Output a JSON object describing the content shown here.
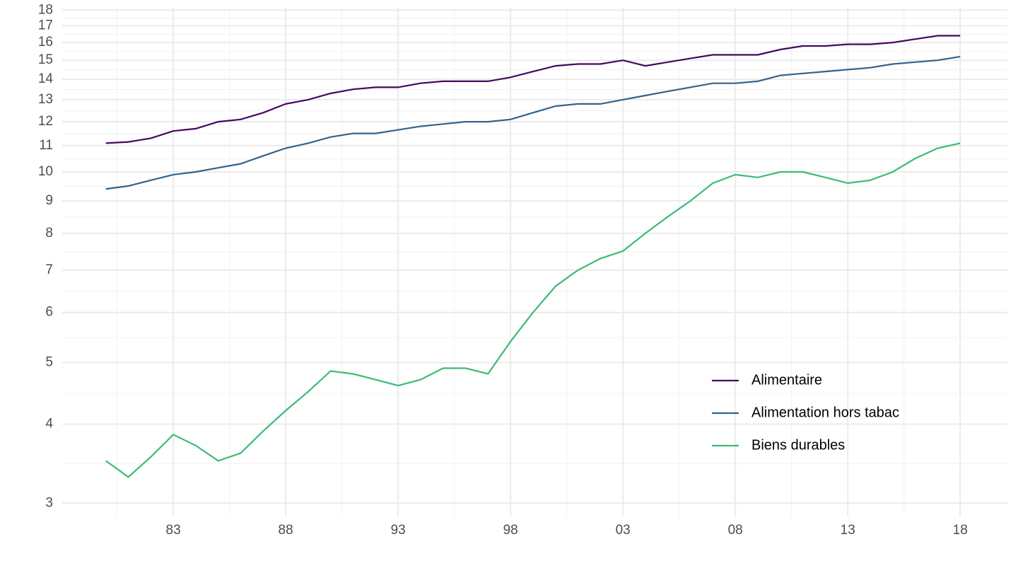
{
  "chart_data": {
    "type": "line",
    "log_y": true,
    "grid": true,
    "legend_position": "bottom-right",
    "x": [
      1980,
      1981,
      1982,
      1983,
      1984,
      1985,
      1986,
      1987,
      1988,
      1989,
      1990,
      1991,
      1992,
      1993,
      1994,
      1995,
      1996,
      1997,
      1998,
      1999,
      2000,
      2001,
      2002,
      2003,
      2004,
      2005,
      2006,
      2007,
      2008,
      2009,
      2010,
      2011,
      2012,
      2013,
      2014,
      2015,
      2016,
      2017,
      2018
    ],
    "series": [
      {
        "name": "Alimentaire",
        "color": "#46085c",
        "values": [
          11.1,
          11.15,
          11.3,
          11.6,
          11.7,
          12.0,
          12.1,
          12.4,
          12.8,
          13.0,
          13.3,
          13.5,
          13.6,
          13.6,
          13.8,
          13.9,
          13.9,
          13.9,
          14.1,
          14.4,
          14.7,
          14.8,
          14.8,
          15.0,
          14.7,
          14.9,
          15.1,
          15.3,
          15.3,
          15.3,
          15.6,
          15.8,
          15.8,
          15.9,
          15.9,
          16.0,
          16.2,
          16.4,
          16.4
        ]
      },
      {
        "name": "Alimentation hors tabac",
        "color": "#33638d",
        "values": [
          9.4,
          9.5,
          9.7,
          9.9,
          10.0,
          10.15,
          10.3,
          10.6,
          10.9,
          11.1,
          11.35,
          11.5,
          11.5,
          11.65,
          11.8,
          11.9,
          12.0,
          12.0,
          12.1,
          12.4,
          12.7,
          12.8,
          12.8,
          13.0,
          13.2,
          13.4,
          13.6,
          13.8,
          13.8,
          13.9,
          14.2,
          14.3,
          14.4,
          14.5,
          14.6,
          14.8,
          14.9,
          15.0,
          15.2
        ]
      },
      {
        "name": "Biens durables",
        "color": "#3cbb75",
        "values": [
          3.5,
          3.3,
          3.55,
          3.85,
          3.7,
          3.5,
          3.6,
          3.9,
          4.2,
          4.5,
          4.85,
          4.8,
          4.7,
          4.6,
          4.7,
          4.9,
          4.9,
          4.8,
          5.4,
          6.0,
          6.6,
          7.0,
          7.3,
          7.5,
          8.0,
          8.5,
          9.0,
          9.6,
          9.9,
          9.8,
          10.0,
          10.0,
          9.8,
          9.6,
          9.7,
          10.0,
          10.5,
          10.9,
          11.1
        ]
      }
    ],
    "xlim": [
      1978.06,
      2020.1
    ],
    "xticks": [
      {
        "value": 1983,
        "label": "83"
      },
      {
        "value": 1988,
        "label": "88"
      },
      {
        "value": 1993,
        "label": "93"
      },
      {
        "value": 1998,
        "label": "98"
      },
      {
        "value": 2003,
        "label": "03"
      },
      {
        "value": 2008,
        "label": "08"
      },
      {
        "value": 2013,
        "label": "13"
      },
      {
        "value": 2018,
        "label": "18"
      }
    ],
    "ylim": [
      2.86,
      18.2
    ],
    "yticks": [
      3,
      4,
      5,
      6,
      7,
      8,
      9,
      10,
      11,
      12,
      13,
      14,
      15,
      16,
      17,
      18
    ]
  }
}
